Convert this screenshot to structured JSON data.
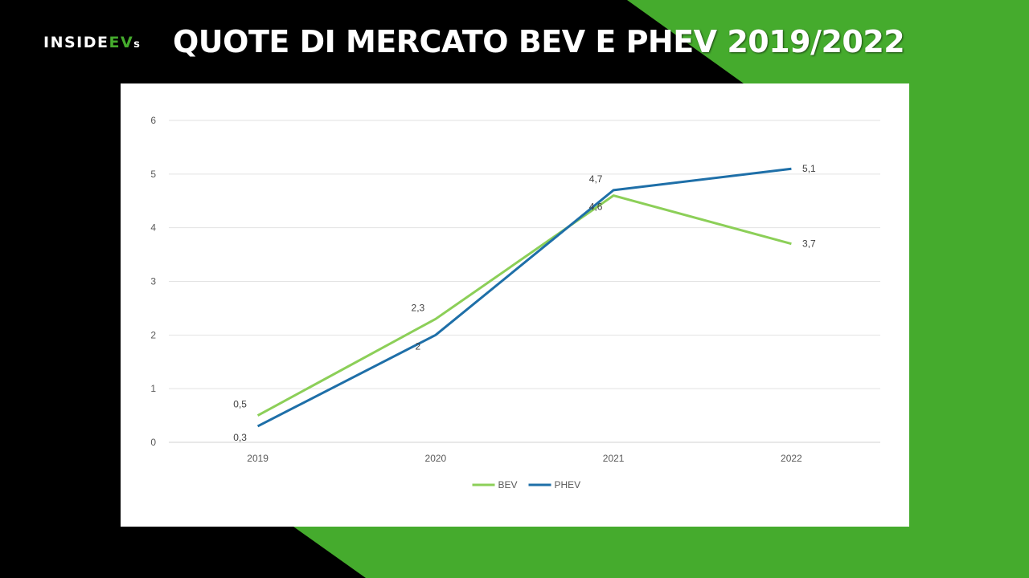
{
  "header": {
    "logo_main": "INSIDE",
    "logo_accent": "EV",
    "logo_suffix": "s",
    "title_main": "QUOTE DI MERCATO BEV E PHEV ",
    "title_years": "2019/2022"
  },
  "colors": {
    "background_black": "#000000",
    "background_green": "#45ab2d",
    "bev_line": "#8ccf58",
    "phev_line": "#1e6fa8"
  },
  "chart_data": {
    "type": "line",
    "title": "",
    "xlabel": "",
    "ylabel": "",
    "categories": [
      "2019",
      "2020",
      "2021",
      "2022"
    ],
    "ylim": [
      0,
      6
    ],
    "yticks": [
      "0",
      "1",
      "2",
      "3",
      "4",
      "5",
      "6"
    ],
    "grid": true,
    "legend_position": "bottom-center",
    "series": [
      {
        "name": "BEV",
        "values": [
          0.5,
          2.3,
          4.6,
          3.7
        ],
        "labels": [
          "0,5",
          "2,3",
          "4,6",
          "3,7"
        ],
        "color": "#8ccf58"
      },
      {
        "name": "PHEV",
        "values": [
          0.3,
          2.0,
          4.7,
          5.1
        ],
        "labels": [
          "0,3",
          "2",
          "4,7",
          "5,1"
        ],
        "color": "#1e6fa8"
      }
    ]
  }
}
